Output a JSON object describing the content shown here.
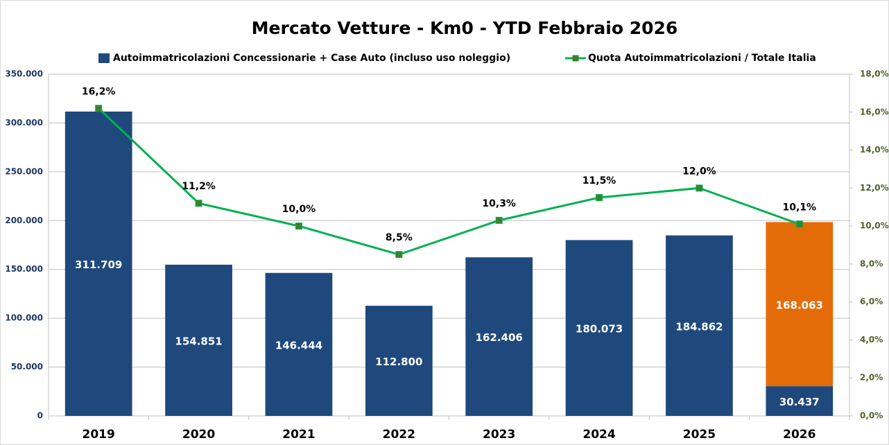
{
  "chart_data": {
    "type": "bar",
    "title": "Mercato Vetture - Km0 - YTD Febbraio 2026",
    "categories": [
      "2019",
      "2020",
      "2021",
      "2022",
      "2023",
      "2024",
      "2025",
      "2026"
    ],
    "series": [
      {
        "name": "Autoimmatricolazioni Concessionarie + Case Auto (incluso uso noleggio)",
        "color": "#1f497d",
        "values": [
          311709,
          154851,
          146444,
          112800,
          162406,
          180073,
          184862,
          30437
        ],
        "value_labels": [
          "311.709",
          "154.851",
          "146.444",
          "112.800",
          "162.406",
          "180.073",
          "184.862",
          "30.437"
        ]
      },
      {
        "color": "#e36c09",
        "values": [
          null,
          null,
          null,
          null,
          null,
          null,
          null,
          168063
        ],
        "value_labels": [
          null,
          null,
          null,
          null,
          null,
          null,
          null,
          "168.063"
        ]
      },
      {
        "name": "Quota Autoimmatricolazioni / Totale Italia",
        "type": "line",
        "axis": "y2",
        "color": "#00b050",
        "marker_color": "#3f7f2f",
        "values": [
          16.2,
          11.2,
          10.0,
          8.5,
          10.3,
          11.5,
          12.0,
          10.1
        ],
        "value_labels": [
          "16,2%",
          "11,2%",
          "10,0%",
          "8,5%",
          "10,3%",
          "11,5%",
          "12,0%",
          "10,1%"
        ]
      }
    ],
    "ylim": [
      0,
      350000
    ],
    "yticks": [
      0,
      {
        "value": 50000,
        "label": "50.000"
      },
      {
        "value": 100000,
        "label": "100.000"
      },
      {
        "value": 150000,
        "label": "150.000"
      },
      {
        "value": 200000,
        "label": "200.000"
      },
      {
        "value": 250000,
        "label": "250.000"
      },
      {
        "value": 300000,
        "label": "300.000"
      },
      {
        "value": 350000,
        "label": "350.000"
      }
    ],
    "y2lim": [
      0,
      18
    ],
    "y2ticks": [
      {
        "value": 0,
        "label": "0,0%"
      },
      {
        "value": 2,
        "label": "2,0%"
      },
      {
        "value": 4,
        "label": "4,0%"
      },
      {
        "value": 6,
        "label": "6,0%"
      },
      {
        "value": 8,
        "label": "8,0%"
      },
      {
        "value": 10,
        "label": "10,0%"
      },
      {
        "value": 12,
        "label": "12,0%"
      },
      {
        "value": 14,
        "label": "14,0%"
      },
      {
        "value": 16,
        "label": "16,0%"
      },
      {
        "value": 18,
        "label": "18,0%"
      }
    ],
    "grid": true,
    "legend": "top"
  }
}
